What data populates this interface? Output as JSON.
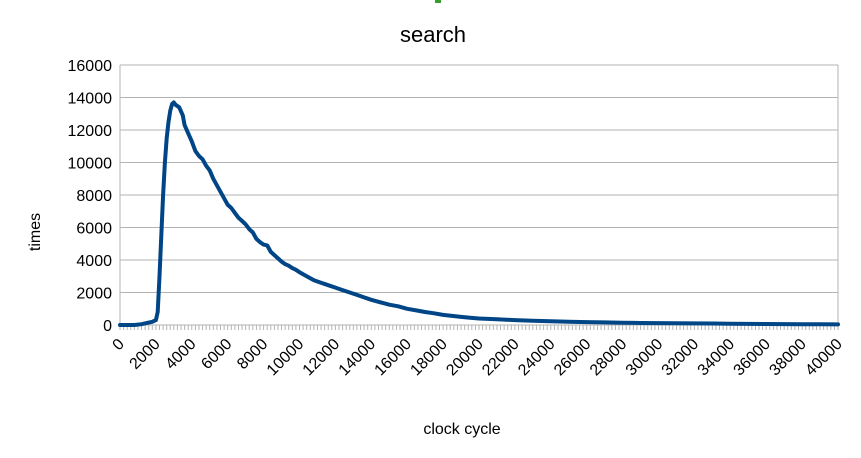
{
  "chart_data": {
    "type": "line",
    "title": "search",
    "xlabel": "clock cycle",
    "ylabel": "times",
    "xlim": [
      0,
      40000
    ],
    "ylim": [
      0,
      16000
    ],
    "grid": "horizontal",
    "legend": "none",
    "x_ticks": [
      "0",
      "2000",
      "4000",
      "6000",
      "8000",
      "10000",
      "12000",
      "14000",
      "16000",
      "18000",
      "20000",
      "22000",
      "24000",
      "26000",
      "28000",
      "30000",
      "32000",
      "34000",
      "36000",
      "38000",
      "40000"
    ],
    "y_ticks": [
      "0",
      "2000",
      "4000",
      "6000",
      "8000",
      "10000",
      "12000",
      "14000",
      "16000"
    ],
    "series": [
      {
        "color": "#004586",
        "points": [
          [
            0,
            0
          ],
          [
            400,
            0
          ],
          [
            800,
            0
          ],
          [
            1200,
            50
          ],
          [
            1600,
            150
          ],
          [
            1800,
            200
          ],
          [
            2000,
            300
          ],
          [
            2100,
            800
          ],
          [
            2200,
            3000
          ],
          [
            2300,
            5500
          ],
          [
            2400,
            8000
          ],
          [
            2500,
            10000
          ],
          [
            2600,
            11500
          ],
          [
            2700,
            12500
          ],
          [
            2800,
            13200
          ],
          [
            2900,
            13600
          ],
          [
            3000,
            13700
          ],
          [
            3100,
            13550
          ],
          [
            3300,
            13400
          ],
          [
            3500,
            12900
          ],
          [
            3600,
            12300
          ],
          [
            3800,
            11800
          ],
          [
            4000,
            11300
          ],
          [
            4200,
            10700
          ],
          [
            4400,
            10400
          ],
          [
            4600,
            10200
          ],
          [
            4800,
            9800
          ],
          [
            5000,
            9500
          ],
          [
            5200,
            9000
          ],
          [
            5400,
            8600
          ],
          [
            5600,
            8200
          ],
          [
            5800,
            7800
          ],
          [
            6000,
            7400
          ],
          [
            6200,
            7200
          ],
          [
            6400,
            6900
          ],
          [
            6600,
            6600
          ],
          [
            6800,
            6400
          ],
          [
            7000,
            6200
          ],
          [
            7200,
            5900
          ],
          [
            7400,
            5700
          ],
          [
            7600,
            5300
          ],
          [
            7800,
            5100
          ],
          [
            8000,
            4950
          ],
          [
            8200,
            4900
          ],
          [
            8400,
            4500
          ],
          [
            8600,
            4300
          ],
          [
            8800,
            4100
          ],
          [
            9000,
            3900
          ],
          [
            9200,
            3750
          ],
          [
            9400,
            3650
          ],
          [
            9600,
            3500
          ],
          [
            9800,
            3400
          ],
          [
            10000,
            3250
          ],
          [
            10400,
            3000
          ],
          [
            10800,
            2750
          ],
          [
            11200,
            2600
          ],
          [
            11600,
            2450
          ],
          [
            12000,
            2300
          ],
          [
            12400,
            2150
          ],
          [
            12800,
            2000
          ],
          [
            13200,
            1850
          ],
          [
            13600,
            1700
          ],
          [
            14000,
            1550
          ],
          [
            14500,
            1400
          ],
          [
            15000,
            1250
          ],
          [
            15500,
            1150
          ],
          [
            16000,
            1000
          ],
          [
            16500,
            900
          ],
          [
            17000,
            800
          ],
          [
            17500,
            720
          ],
          [
            18000,
            620
          ],
          [
            18500,
            560
          ],
          [
            19000,
            500
          ],
          [
            19500,
            450
          ],
          [
            20000,
            400
          ],
          [
            21000,
            350
          ],
          [
            22000,
            300
          ],
          [
            23000,
            260
          ],
          [
            24000,
            230
          ],
          [
            25000,
            200
          ],
          [
            26000,
            180
          ],
          [
            27000,
            160
          ],
          [
            28000,
            140
          ],
          [
            29000,
            125
          ],
          [
            30000,
            115
          ],
          [
            31000,
            105
          ],
          [
            32000,
            100
          ],
          [
            33000,
            90
          ],
          [
            34000,
            80
          ],
          [
            35000,
            70
          ],
          [
            36000,
            60
          ],
          [
            37000,
            55
          ],
          [
            38000,
            50
          ],
          [
            39000,
            45
          ],
          [
            40000,
            40
          ]
        ]
      }
    ]
  }
}
